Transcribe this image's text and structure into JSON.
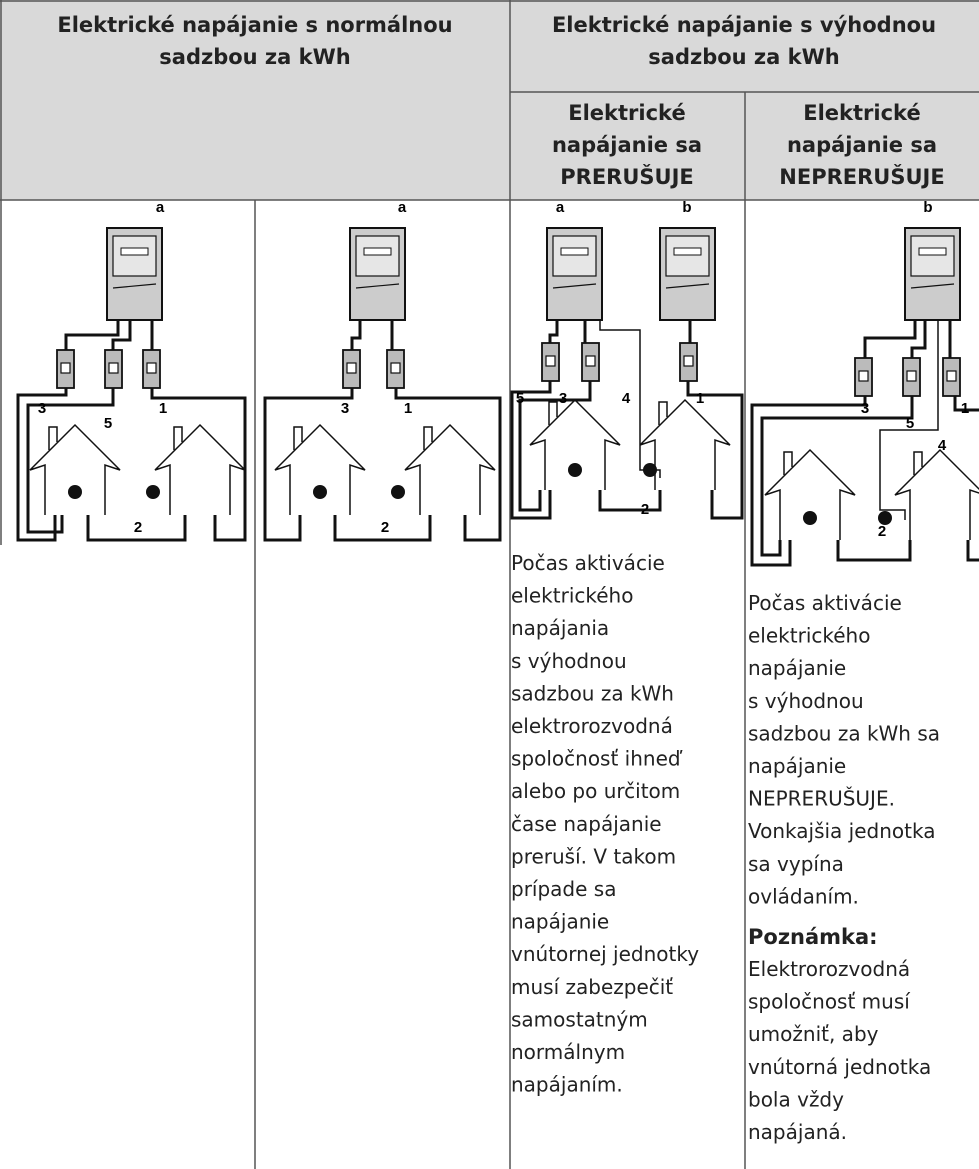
{
  "table": {
    "header": {
      "normal": [
        "Elektrické napájanie s normálnou",
        "sadzbou za kWh"
      ],
      "preferential": [
        "Elektrické napájanie s výhodnou",
        "sadzbou za kWh"
      ],
      "interrupted": [
        "Elektrické",
        "napájanie sa",
        "PRERUŠUJE"
      ],
      "uninterrupted": [
        "Elektrické",
        "napájanie sa",
        "NEPRERUŠUJE"
      ]
    },
    "diagrams": [
      {
        "labels": [
          "a",
          "3",
          "5",
          "1",
          "2"
        ]
      },
      {
        "labels": [
          "a",
          "3",
          "1",
          "2"
        ]
      },
      {
        "labels": [
          "a",
          "b",
          "5",
          "3",
          "4",
          "1",
          "2"
        ]
      },
      {
        "labels": [
          "b",
          "3",
          "5",
          "1",
          "4",
          "2"
        ]
      }
    ],
    "interrupted_text": [
      "Počas aktivácie",
      "elektrického",
      "napájania",
      "s výhodnou",
      "sadzbou za kWh",
      "elektrorozvodná",
      "spoločnosť ihneď",
      "alebo po určitom",
      "čase napájanie",
      "preruší. V takom",
      "prípade sa",
      "napájanie",
      "vnútornej jednotky",
      "musí zabezpečiť",
      "samostatným",
      "normálnym",
      "napájaním."
    ],
    "uninterrupted_text": [
      "Počas aktivácie",
      "elektrického",
      "napájanie",
      "s výhodnou",
      "sadzbou za kWh sa",
      "napájanie",
      "NEPRERUŠUJE.",
      "Vonkajšia jednotka",
      "sa vypína",
      "ovládaním."
    ],
    "note_title": "Poznámka:",
    "note_text": [
      "Elektrorozvodná",
      "spoločnosť musí",
      "umožniť, aby",
      "vnútorná jednotka",
      "bola vždy",
      "napájaná."
    ]
  }
}
